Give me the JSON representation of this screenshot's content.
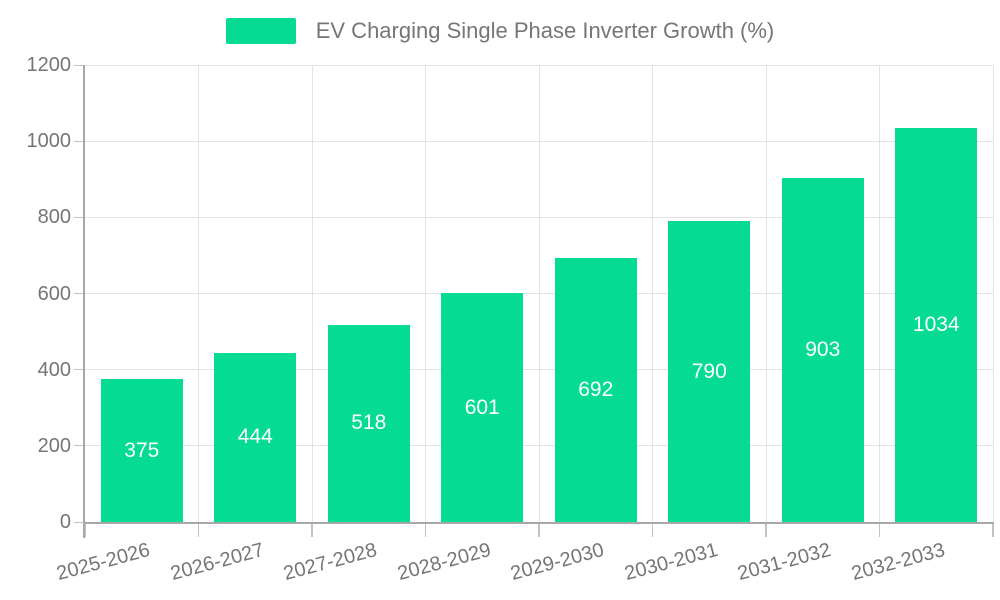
{
  "legend": {
    "label": "EV Charging Single Phase Inverter Growth (%)"
  },
  "chart_data": {
    "type": "bar",
    "title": "EV Charging Single Phase Inverter Growth (%)",
    "categories": [
      "2025-2026",
      "2026-2027",
      "2027-2028",
      "2028-2029",
      "2029-2030",
      "2030-2031",
      "2031-2032",
      "2032-2033"
    ],
    "values": [
      375,
      444,
      518,
      601,
      692,
      790,
      903,
      1034
    ],
    "xlabel": "",
    "ylabel": "",
    "ylim": [
      0,
      1200
    ],
    "yticks": [
      0,
      200,
      400,
      600,
      800,
      1000,
      1200
    ],
    "grid": true,
    "legend_position": "top",
    "x_label_rotation_deg": -15,
    "value_labels": "inside-center",
    "bar_color": "#05db93",
    "value_label_color": "#ffffff",
    "axis_text_color": "#757575",
    "grid_color": "#e2e2e2",
    "axis_line_color": "#a8a8a8",
    "tick_color": "#c2c2c2",
    "background": "#ffffff"
  }
}
